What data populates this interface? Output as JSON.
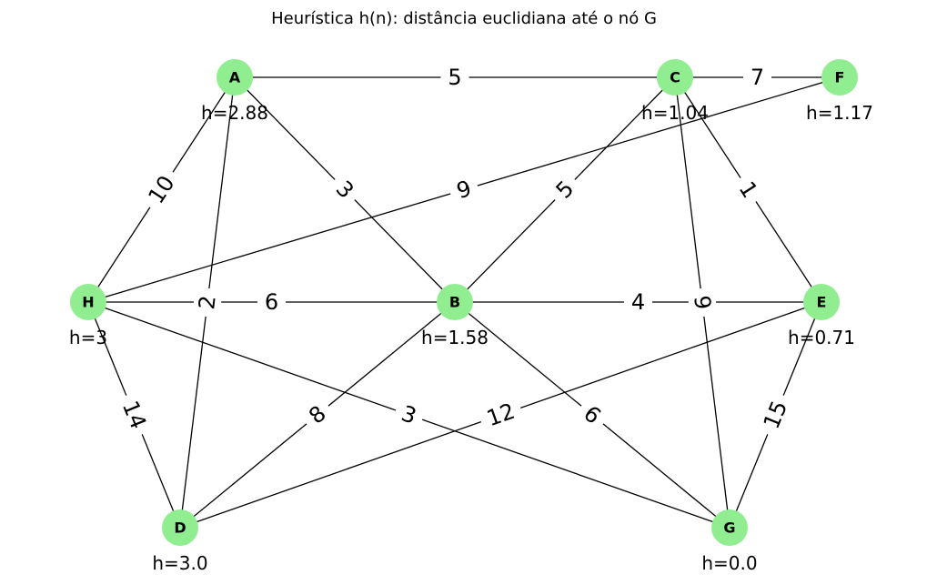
{
  "title": "Heurística h(n): distância euclidiana até o nó G",
  "colors": {
    "node_fill": "#90ee90",
    "edge": "#000000",
    "label_bg": "#ffffff"
  },
  "nodes": [
    {
      "id": "A",
      "h_label": "h=2.88"
    },
    {
      "id": "C",
      "h_label": "h=1.04"
    },
    {
      "id": "F",
      "h_label": "h=1.17"
    },
    {
      "id": "H",
      "h_label": "h=3"
    },
    {
      "id": "B",
      "h_label": "h=1.58"
    },
    {
      "id": "E",
      "h_label": "h=0.71"
    },
    {
      "id": "D",
      "h_label": "h=3.0"
    },
    {
      "id": "G",
      "h_label": "h=0.0"
    }
  ],
  "edges": [
    {
      "source": "A",
      "target": "C",
      "weight": "5"
    },
    {
      "source": "C",
      "target": "F",
      "weight": "7"
    },
    {
      "source": "A",
      "target": "H",
      "weight": "10"
    },
    {
      "source": "A",
      "target": "B",
      "weight": "3"
    },
    {
      "source": "A",
      "target": "D",
      "weight": "2"
    },
    {
      "source": "F",
      "target": "H",
      "weight": "9"
    },
    {
      "source": "C",
      "target": "B",
      "weight": "5"
    },
    {
      "source": "C",
      "target": "E",
      "weight": "1"
    },
    {
      "source": "C",
      "target": "G",
      "weight": "9"
    },
    {
      "source": "H",
      "target": "B",
      "weight": "6"
    },
    {
      "source": "B",
      "target": "E",
      "weight": "4"
    },
    {
      "source": "H",
      "target": "D",
      "weight": "14"
    },
    {
      "source": "H",
      "target": "G",
      "weight": "3"
    },
    {
      "source": "B",
      "target": "D",
      "weight": "8"
    },
    {
      "source": "B",
      "target": "G",
      "weight": "6"
    },
    {
      "source": "E",
      "target": "D",
      "weight": "12"
    },
    {
      "source": "E",
      "target": "G",
      "weight": "15"
    }
  ]
}
